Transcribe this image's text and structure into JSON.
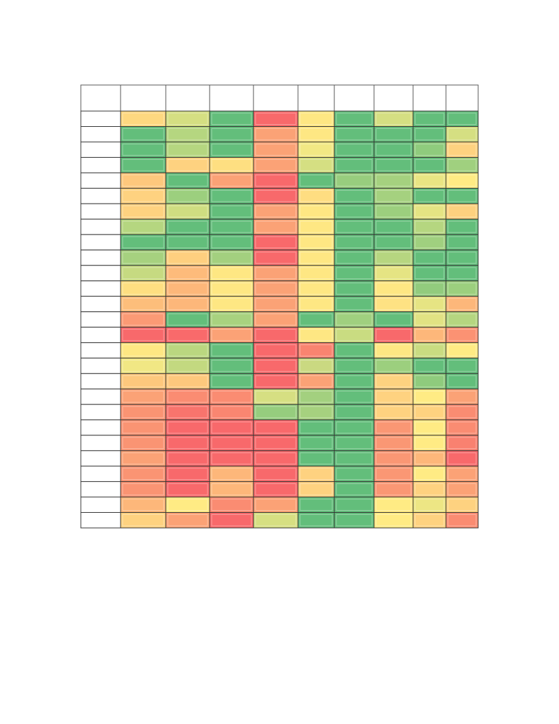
{
  "table": {
    "column_count": 10,
    "header_color": "#ffffff",
    "row_label_color": "#ffffff",
    "cell_colors": [
      [
        "#fdd880",
        "#d5df82",
        "#63be7b",
        "#f8696b",
        "#fee783",
        "#63be7b",
        "#d5df82",
        "#63be7b",
        "#63be7b"
      ],
      [
        "#63be7b",
        "#b5d680",
        "#63be7b",
        "#fba276",
        "#fee783",
        "#63be7b",
        "#63be7b",
        "#63be7b",
        "#d5df82"
      ],
      [
        "#63be7b",
        "#b5d680",
        "#63be7b",
        "#fba276",
        "#f2e884",
        "#63be7b",
        "#63be7b",
        "#8fcb7d",
        "#fed280"
      ],
      [
        "#63be7b",
        "#fed280",
        "#fedf81",
        "#fba276",
        "#d5df82",
        "#63be7b",
        "#63be7b",
        "#63be7b",
        "#a0d07f"
      ],
      [
        "#fec87d",
        "#63be7b",
        "#fba276",
        "#f8696b",
        "#63be7b",
        "#98cd7e",
        "#a5d17f",
        "#e9e583",
        "#ffeb84"
      ],
      [
        "#fed280",
        "#9ccf7e",
        "#63be7b",
        "#f8696b",
        "#fedd81",
        "#63be7b",
        "#a5d17f",
        "#63be7b",
        "#63be7b"
      ],
      [
        "#fed280",
        "#cfdd81",
        "#63be7b",
        "#fba276",
        "#fee783",
        "#63be7b",
        "#9ccf7e",
        "#e5e483",
        "#fdd17f"
      ],
      [
        "#b5d680",
        "#63be7b",
        "#63be7b",
        "#fba276",
        "#fee783",
        "#63be7b",
        "#63be7b",
        "#b5d680",
        "#63be7b"
      ],
      [
        "#63be7b",
        "#63be7b",
        "#63be7b",
        "#f8696b",
        "#fee783",
        "#63be7b",
        "#63be7b",
        "#a0d07f",
        "#63be7b"
      ],
      [
        "#a6d17f",
        "#fecf7f",
        "#a3d07f",
        "#f8696b",
        "#fee783",
        "#63be7b",
        "#b6d680",
        "#63be7b",
        "#63be7b"
      ],
      [
        "#c6da81",
        "#fdbb7b",
        "#fee783",
        "#fba276",
        "#fee783",
        "#63be7b",
        "#e5e483",
        "#63be7b",
        "#63be7b"
      ],
      [
        "#fedf81",
        "#fdb77a",
        "#fee783",
        "#fba276",
        "#fee783",
        "#63be7b",
        "#fee783",
        "#92cb7d",
        "#9ccf7e"
      ],
      [
        "#fdbe7b",
        "#fdb77a",
        "#fee783",
        "#fba276",
        "#fee783",
        "#63be7b",
        "#fee283",
        "#e6e483",
        "#fdb77a"
      ],
      [
        "#fb9a75",
        "#63be7b",
        "#a8d27f",
        "#fba276",
        "#63be7b",
        "#a0d07f",
        "#63be7b",
        "#e1e283",
        "#b5d680"
      ],
      [
        "#f8696b",
        "#f96a6b",
        "#fba276",
        "#f8696b",
        "#fee783",
        "#c9dc81",
        "#f8696b",
        "#fdb77a",
        "#fb9273"
      ],
      [
        "#fee783",
        "#bad780",
        "#63be7b",
        "#f8696b",
        "#f98470",
        "#63be7b",
        "#fee783",
        "#c9dc81",
        "#ffeb84"
      ],
      [
        "#f1e784",
        "#c3d980",
        "#63be7b",
        "#f8696b",
        "#cad981",
        "#63be7b",
        "#9ccf7e",
        "#63be7b",
        "#63be7b"
      ],
      [
        "#fdc87d",
        "#fdc87d",
        "#63be7b",
        "#f8696b",
        "#fba276",
        "#63be7b",
        "#fed280",
        "#8fcb7d",
        "#63be7b"
      ],
      [
        "#fba276",
        "#fa8c72",
        "#fa8c72",
        "#d6df82",
        "#a3d07f",
        "#63be7b",
        "#fed280",
        "#ffeb84",
        "#fba276"
      ],
      [
        "#fa9473",
        "#f8746d",
        "#fa8671",
        "#96cd7e",
        "#a6d17f",
        "#63be7b",
        "#fed280",
        "#fed280",
        "#fa8c72"
      ],
      [
        "#fa9473",
        "#f8696b",
        "#f8696b",
        "#f8696b",
        "#63be7b",
        "#63be7b",
        "#fa9774",
        "#ffeb84",
        "#fa8c72"
      ],
      [
        "#fa9473",
        "#f8696b",
        "#f8696b",
        "#f8696b",
        "#63be7b",
        "#63be7b",
        "#fa9774",
        "#ffeb84",
        "#f98170"
      ],
      [
        "#fba276",
        "#f8696b",
        "#f8696b",
        "#f8696b",
        "#63be7b",
        "#63be7b",
        "#fa9774",
        "#fdb77a",
        "#f8696b"
      ],
      [
        "#fa9473",
        "#f8696b",
        "#fdb77a",
        "#f8696b",
        "#fed280",
        "#63be7b",
        "#fa9774",
        "#ffeb84",
        "#fba276"
      ],
      [
        "#fa9473",
        "#f8696b",
        "#fdb77a",
        "#f8696b",
        "#fed280",
        "#63be7b",
        "#fa9774",
        "#fed280",
        "#fba276"
      ],
      [
        "#fdb77a",
        "#ffeb84",
        "#fa8c72",
        "#fba276",
        "#63be7b",
        "#63be7b",
        "#ffeb84",
        "#ede684",
        "#fed280"
      ],
      [
        "#fed280",
        "#fba276",
        "#f8696b",
        "#d6df82",
        "#63be7b",
        "#63be7b",
        "#ffeb84",
        "#fed280",
        "#fa8c72"
      ]
    ]
  }
}
